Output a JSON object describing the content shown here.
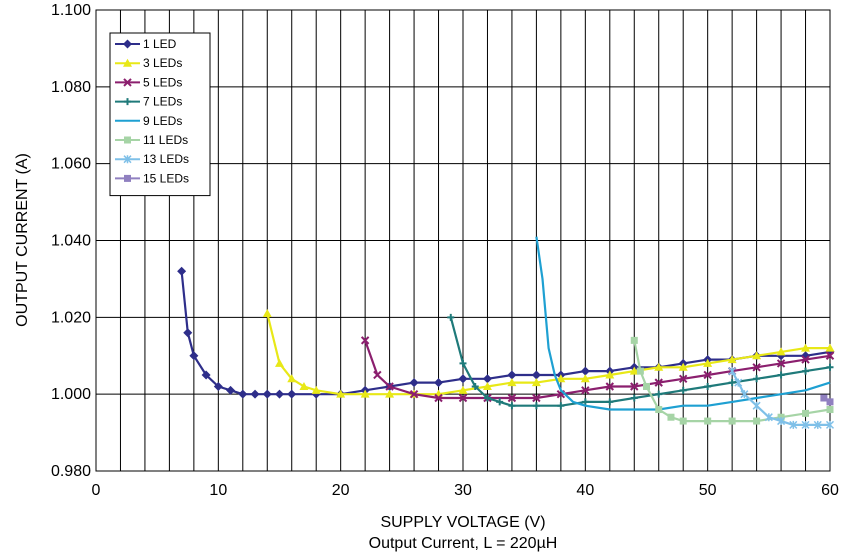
{
  "chart_data": {
    "type": "line",
    "title": "",
    "xlabel": "SUPPLY VOLTAGE (V)",
    "ylabel": "OUTPUT CURRENT (A)",
    "caption": "Output Current, L = 220µH",
    "xlim": [
      0,
      60
    ],
    "ylim": [
      0.98,
      1.1
    ],
    "x_ticks": [
      0,
      10,
      20,
      30,
      40,
      50,
      60
    ],
    "x_tick_labels": [
      "0",
      "10",
      "20",
      "30",
      "40",
      "50",
      "60"
    ],
    "y_ticks": [
      0.98,
      1.0,
      1.02,
      1.04,
      1.06,
      1.08,
      1.1
    ],
    "y_tick_labels": [
      "0.980",
      "1.000",
      "1.020",
      "1.040",
      "1.060",
      "1.080",
      "1.100"
    ],
    "grid": {
      "vertical_step": 2,
      "horizontal_step": 0.02
    },
    "legend_position": "top-left",
    "series": [
      {
        "name": "1 LED",
        "color": "#2e2e8a",
        "marker": "diamond",
        "x": [
          7,
          7.5,
          8,
          9,
          10,
          11,
          12,
          13,
          14,
          15,
          16,
          18,
          20,
          22,
          24,
          26,
          28,
          30,
          32,
          34,
          36,
          38,
          40,
          42,
          44,
          46,
          48,
          50,
          52,
          54,
          56,
          58,
          60
        ],
        "y": [
          1.032,
          1.016,
          1.01,
          1.005,
          1.002,
          1.001,
          1.0,
          1.0,
          1.0,
          1.0,
          1.0,
          1.0,
          1.0,
          1.001,
          1.002,
          1.003,
          1.003,
          1.004,
          1.004,
          1.005,
          1.005,
          1.005,
          1.006,
          1.006,
          1.007,
          1.007,
          1.008,
          1.009,
          1.009,
          1.01,
          1.01,
          1.01,
          1.011
        ]
      },
      {
        "name": "3 LEDs",
        "color": "#e8e817",
        "marker": "triangle",
        "x": [
          14,
          15,
          16,
          17,
          18,
          20,
          22,
          24,
          26,
          28,
          30,
          32,
          34,
          36,
          38,
          40,
          42,
          44,
          46,
          48,
          50,
          52,
          54,
          56,
          58,
          60
        ],
        "y": [
          1.021,
          1.008,
          1.004,
          1.002,
          1.001,
          1.0,
          1.0,
          1.0,
          1.0,
          1.0,
          1.001,
          1.002,
          1.003,
          1.003,
          1.004,
          1.004,
          1.005,
          1.006,
          1.007,
          1.007,
          1.008,
          1.009,
          1.01,
          1.011,
          1.012,
          1.012
        ]
      },
      {
        "name": "5 LEDs",
        "color": "#8b1f6e",
        "marker": "x",
        "x": [
          22,
          23,
          24,
          26,
          28,
          30,
          32,
          34,
          36,
          38,
          40,
          42,
          44,
          46,
          48,
          50,
          52,
          54,
          56,
          58,
          60
        ],
        "y": [
          1.014,
          1.005,
          1.002,
          1.0,
          0.999,
          0.999,
          0.999,
          0.999,
          0.999,
          1.0,
          1.001,
          1.002,
          1.002,
          1.003,
          1.004,
          1.005,
          1.006,
          1.007,
          1.008,
          1.009,
          1.01
        ]
      },
      {
        "name": "7 LEDs",
        "color": "#1f7a7a",
        "marker": "plus",
        "x": [
          29,
          30,
          31,
          32,
          33,
          34,
          36,
          38,
          40,
          42,
          44,
          46,
          48,
          50,
          52,
          54,
          56,
          58,
          60
        ],
        "y": [
          1.02,
          1.008,
          1.002,
          0.999,
          0.998,
          0.997,
          0.997,
          0.997,
          0.998,
          0.998,
          0.999,
          1.0,
          1.001,
          1.002,
          1.003,
          1.004,
          1.005,
          1.006,
          1.007
        ]
      },
      {
        "name": "9 LEDs",
        "color": "#1ea0d2",
        "marker": "none",
        "x": [
          36,
          36.5,
          37,
          37.5,
          38,
          39,
          40,
          42,
          44,
          46,
          48,
          50,
          52,
          54,
          56,
          58,
          60
        ],
        "y": [
          1.041,
          1.03,
          1.012,
          1.005,
          1.001,
          0.998,
          0.997,
          0.996,
          0.996,
          0.996,
          0.997,
          0.997,
          0.998,
          0.999,
          1.0,
          1.001,
          1.003
        ]
      },
      {
        "name": "11 LEDs",
        "color": "#a6d4a6",
        "marker": "square",
        "x": [
          44,
          44.5,
          45,
          46,
          47,
          48,
          50,
          52,
          54,
          56,
          58,
          60
        ],
        "y": [
          1.014,
          1.006,
          1.002,
          0.996,
          0.994,
          0.993,
          0.993,
          0.993,
          0.993,
          0.994,
          0.995,
          0.996
        ]
      },
      {
        "name": "13 LEDs",
        "color": "#7fc0e8",
        "marker": "star",
        "x": [
          52,
          52.5,
          53,
          54,
          55,
          56,
          57,
          58,
          59,
          60
        ],
        "y": [
          1.006,
          1.003,
          1.0,
          0.997,
          0.994,
          0.993,
          0.992,
          0.992,
          0.992,
          0.992
        ]
      },
      {
        "name": "15 LEDs",
        "color": "#9080c0",
        "marker": "square",
        "x": [
          59.5,
          60
        ],
        "y": [
          0.999,
          0.998
        ]
      }
    ]
  }
}
